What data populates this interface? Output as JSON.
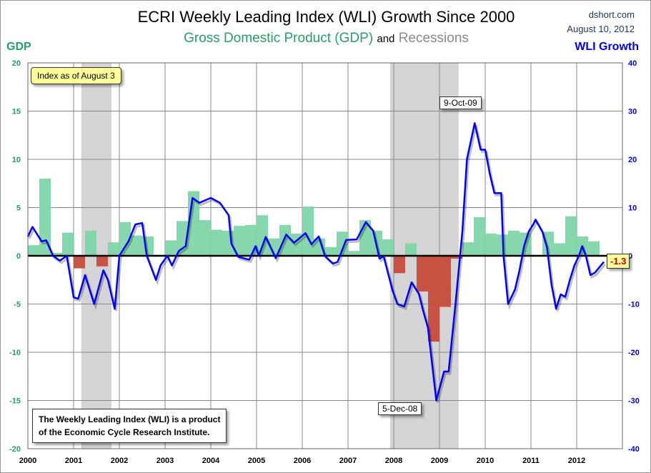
{
  "header": {
    "title": "ECRI Weekly Leading Index (WLI) Growth Since 2000",
    "subtitle_gdp": "Gross Domestic Product (GDP)",
    "subtitle_and": "and",
    "subtitle_rec": "Recessions",
    "source": "dshort.com",
    "date": "August 10, 2012"
  },
  "colors": {
    "gdp_positive": "#7fd5a6",
    "gdp_negative": "#c84c3a",
    "recession": "#d4d4d4",
    "wli": "#0000ff",
    "gdp_label": "#27a067",
    "recession_label": "#8a8a8a"
  },
  "chart_data": {
    "type": "bar+line",
    "title": "ECRI Weekly Leading Index (WLI) Growth Since 2000",
    "left_axis": {
      "label": "GDP",
      "range": [
        -20,
        20
      ],
      "ticks": [
        -20,
        -15,
        -10,
        -5,
        0,
        5,
        10,
        15,
        20
      ]
    },
    "right_axis": {
      "label": "WLI Growth",
      "range": [
        -40,
        40
      ],
      "ticks": [
        -40,
        -30,
        -20,
        -10,
        0,
        10,
        20,
        30,
        40
      ]
    },
    "x_axis": {
      "range": [
        2000,
        2013
      ],
      "ticks": [
        "2000",
        "2001",
        "2002",
        "2003",
        "2004",
        "2005",
        "2006",
        "2007",
        "2008",
        "2009",
        "2010",
        "2011",
        "2012"
      ]
    },
    "grid": true,
    "gdp_quarterly": {
      "start": "2000 Q1",
      "values": [
        1.1,
        8.0,
        0.3,
        2.4,
        -1.3,
        2.6,
        -1.1,
        1.4,
        3.5,
        2.1,
        2.0,
        0.1,
        1.6,
        3.6,
        6.7,
        3.7,
        2.7,
        2.6,
        3.1,
        3.2,
        4.2,
        1.8,
        3.2,
        2.3,
        5.1,
        1.8,
        0.9,
        2.5,
        0.5,
        3.7,
        2.6,
        1.7,
        -1.8,
        1.3,
        -3.7,
        -8.9,
        -5.3,
        -0.3,
        1.4,
        4.0,
        2.3,
        2.2,
        2.6,
        2.4,
        0.1,
        2.5,
        1.3,
        4.1,
        2.0,
        1.5
      ]
    },
    "wli": {
      "x": [
        2000.0,
        2000.1,
        2000.3,
        2000.4,
        2000.55,
        2000.7,
        2000.85,
        2001.0,
        2001.1,
        2001.25,
        2001.45,
        2001.65,
        2001.75,
        2001.9,
        2002.0,
        2002.2,
        2002.35,
        2002.5,
        2002.6,
        2002.8,
        2002.9,
        2003.05,
        2003.15,
        2003.3,
        2003.45,
        2003.6,
        2003.75,
        2004.0,
        2004.2,
        2004.39,
        2004.45,
        2004.6,
        2004.84,
        2004.98,
        2005.05,
        2005.2,
        2005.42,
        2005.65,
        2005.82,
        2006.07,
        2006.2,
        2006.36,
        2006.5,
        2006.67,
        2006.77,
        2006.96,
        2007.19,
        2007.39,
        2007.55,
        2007.69,
        2007.78,
        2007.97,
        2008.08,
        2008.23,
        2008.39,
        2008.55,
        2008.64,
        2008.75,
        2008.93,
        2009.1,
        2009.2,
        2009.35,
        2009.5,
        2009.6,
        2009.77,
        2009.9,
        2010.0,
        2010.1,
        2010.2,
        2010.35,
        2010.4,
        2010.5,
        2010.55,
        2010.65,
        2010.75,
        2010.85,
        2010.95,
        2011.05,
        2011.1,
        2011.25,
        2011.35,
        2011.45,
        2011.55,
        2011.65,
        2011.75,
        2011.85,
        2011.95,
        2012.05,
        2012.12,
        2012.2,
        2012.3,
        2012.4,
        2012.59
      ],
      "y": [
        4,
        6,
        3,
        3.2,
        0,
        -1,
        0,
        -8.6,
        -8.9,
        -4,
        -10,
        -3,
        -5,
        -11,
        0,
        3,
        6.5,
        6.8,
        0,
        -5,
        -2,
        0,
        -2,
        1,
        2,
        12,
        11,
        12,
        11,
        8.4,
        2.5,
        -0.2,
        -0.8,
        2,
        0,
        3.9,
        -0.5,
        4.4,
        2.7,
        4.7,
        2.4,
        4,
        -0.1,
        -1.6,
        -1.3,
        3.3,
        3.4,
        7,
        5.2,
        -0.6,
        -0.1,
        -7.1,
        -10,
        -10.5,
        -5.5,
        -7.9,
        -11.3,
        -15,
        -30,
        -24,
        -24,
        -10,
        5,
        20,
        27.5,
        22,
        22,
        17,
        13,
        13,
        0,
        -10,
        -9,
        -7,
        -3,
        2,
        5,
        6.5,
        7.5,
        5,
        1.8,
        -6,
        -11,
        -8,
        -8.5,
        -5,
        -2,
        0,
        2,
        0,
        -4,
        -3.5,
        -1.3
      ]
    },
    "recessions": [
      [
        2001.17,
        2001.83
      ],
      [
        2007.92,
        2009.42
      ]
    ],
    "annotations": {
      "as_of": "Index as of August 3",
      "peak": "9-Oct-09",
      "trough": "5-Dec-08",
      "latest": "-1.3",
      "note_line1": "The Weekly Leading Index (WLI) is a product",
      "note_line2": "of the Economic Cycle Research Institute."
    },
    "annotation_points": {
      "peak": [
        2009.77,
        27.5
      ],
      "trough": [
        2008.93,
        -30
      ],
      "latest": [
        2012.59,
        -1.3
      ]
    }
  }
}
